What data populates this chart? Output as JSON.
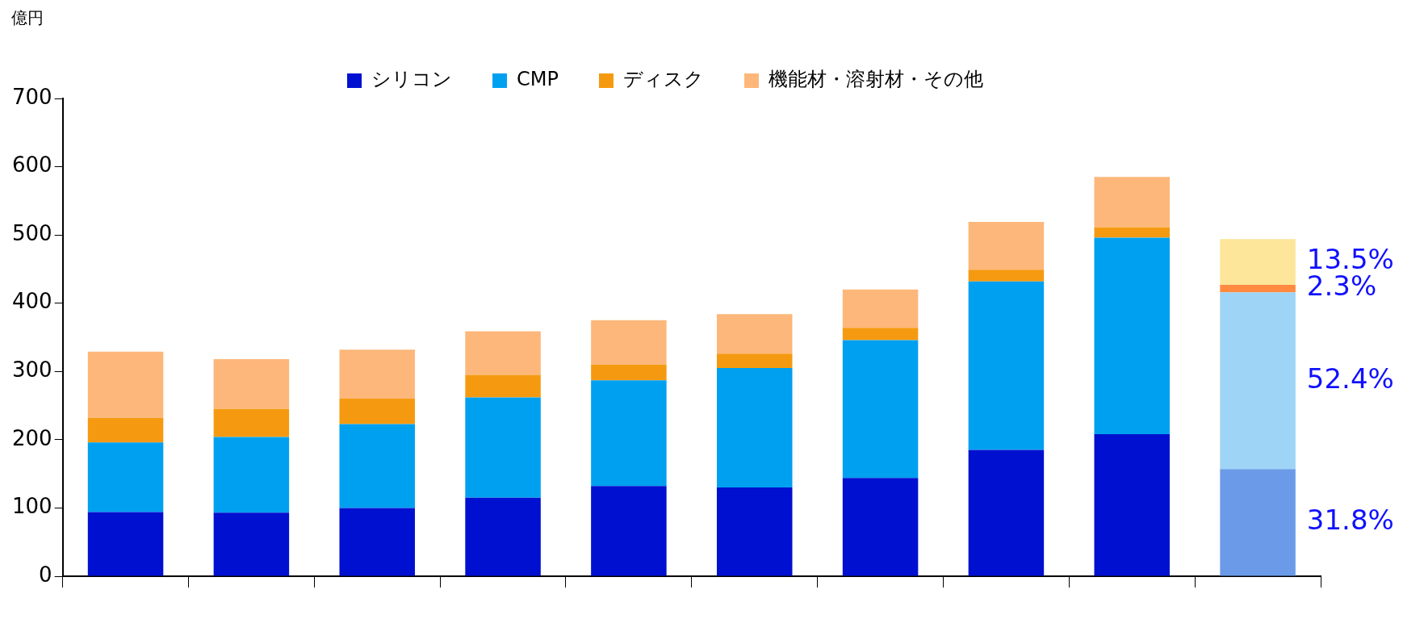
{
  "chart_data": {
    "type": "bar",
    "stacked": true,
    "ylabel": "億円",
    "categories": [
      null,
      null,
      null,
      null,
      null,
      null,
      null,
      null,
      null,
      null
    ],
    "ylim": [
      0,
      700
    ],
    "yticks": [
      0,
      100,
      200,
      300,
      400,
      500,
      600,
      700
    ],
    "grid": false,
    "legend": "top",
    "series": [
      {
        "name": "シリコン",
        "color": "#0010d0",
        "colors": [
          "#0010d0",
          "#0010d0",
          "#0010d0",
          "#0010d0",
          "#0010d0",
          "#0010d0",
          "#0010d0",
          "#0010d0",
          "#0010d0",
          "#6b9be8"
        ],
        "values": [
          94,
          93,
          100,
          115,
          132,
          130,
          144,
          185,
          208,
          157
        ]
      },
      {
        "name": "CMP",
        "color": "#00a0f0",
        "colors": [
          "#00a0f0",
          "#00a0f0",
          "#00a0f0",
          "#00a0f0",
          "#00a0f0",
          "#00a0f0",
          "#00a0f0",
          "#00a0f0",
          "#00a0f0",
          "#9ed4f5"
        ],
        "values": [
          102,
          111,
          123,
          147,
          155,
          175,
          202,
          247,
          288,
          259
        ]
      },
      {
        "name": "ディスク",
        "color": "#f59a10",
        "colors": [
          "#f59a10",
          "#f59a10",
          "#f59a10",
          "#f59a10",
          "#f59a10",
          "#f59a10",
          "#f59a10",
          "#f59a10",
          "#f59a10",
          "#ff8a40"
        ],
        "values": [
          36,
          41,
          37,
          33,
          23,
          21,
          18,
          17,
          15,
          11
        ]
      },
      {
        "name": "機能材・溶射材・その他",
        "color": "#fdb77a",
        "colors": [
          "#fdb77a",
          "#fdb77a",
          "#fdb77a",
          "#fdb77a",
          "#fdb77a",
          "#fdb77a",
          "#fdb77a",
          "#fdb77a",
          "#fdb77a",
          "#fde59a"
        ],
        "values": [
          97,
          73,
          72,
          64,
          65,
          58,
          56,
          70,
          74,
          67
        ]
      }
    ],
    "annotations": [
      "13.5%",
      "2.3%",
      "52.4%",
      "31.8%"
    ]
  }
}
